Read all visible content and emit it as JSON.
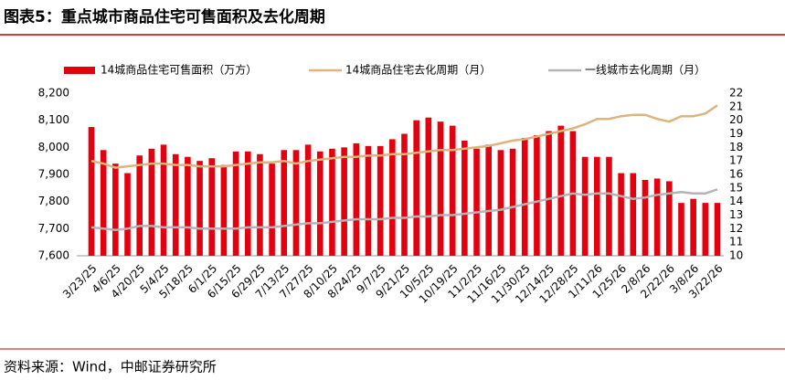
{
  "chart_data": {
    "type": "bar",
    "title": "图表5：重点城市商品住宅可售面积及去化周期",
    "source": "资料来源：Wind，中邮证券研究所",
    "categories": [
      "3/23/25",
      null,
      "4/6/25",
      null,
      "4/20/25",
      null,
      "5/4/25",
      null,
      "5/18/25",
      null,
      "6/1/25",
      null,
      "6/15/25",
      null,
      "6/29/25",
      null,
      "7/13/25",
      null,
      "7/27/25",
      null,
      "8/10/25",
      null,
      "8/24/25",
      null,
      "9/7/25",
      null,
      "9/21/25",
      null,
      "10/5/25",
      null,
      "10/19/25",
      null,
      "11/2/25",
      null,
      "11/16/25",
      null,
      "11/30/25",
      null,
      "12/14/25",
      null,
      "12/28/25",
      null,
      "1/11/26",
      null,
      "1/25/26",
      null,
      "2/8/26",
      null,
      "2/22/26",
      null,
      "3/8/26",
      null,
      "3/22/26"
    ],
    "series": [
      {
        "name": "14城商品住宅可售面积（万方）",
        "type": "bar",
        "color": "#e3000f",
        "values": [
          8075,
          7990,
          7940,
          7905,
          7970,
          7995,
          8010,
          7975,
          7965,
          7950,
          7960,
          7935,
          7985,
          7985,
          7975,
          7940,
          7990,
          7990,
          8010,
          7985,
          7995,
          8000,
          8015,
          8005,
          8005,
          8030,
          8050,
          8100,
          8110,
          8095,
          8080,
          8025,
          7995,
          8010,
          7990,
          7995,
          8035,
          8045,
          8060,
          8080,
          8060,
          7965,
          7965,
          7965,
          7905,
          7905,
          7880,
          7885,
          7875,
          7795,
          7810,
          7795,
          7795
        ]
      },
      {
        "name": "14城商品住宅去化周期（月）",
        "type": "line",
        "axis": "y2",
        "color": "#dcb47e",
        "values": [
          17.0,
          16.8,
          16.5,
          16.6,
          16.7,
          16.8,
          16.8,
          16.7,
          16.7,
          16.6,
          16.6,
          16.6,
          16.7,
          16.8,
          16.9,
          16.9,
          17.0,
          16.8,
          17.0,
          17.1,
          17.2,
          17.3,
          17.3,
          17.4,
          17.4,
          17.5,
          17.5,
          17.6,
          17.7,
          17.8,
          17.8,
          17.9,
          18.0,
          18.1,
          18.3,
          18.5,
          18.6,
          18.8,
          19.0,
          19.2,
          19.4,
          19.7,
          20.1,
          20.1,
          20.3,
          20.4,
          20.4,
          20.1,
          19.9,
          20.3,
          20.3,
          20.5,
          21.1
        ]
      },
      {
        "name": "一线城市去化周期（月）",
        "type": "line",
        "axis": "y2",
        "color": "#b4b4b4",
        "values": [
          12.1,
          12.0,
          11.9,
          12.0,
          12.2,
          12.2,
          12.1,
          12.1,
          12.1,
          12.0,
          12.0,
          12.0,
          12.0,
          12.1,
          12.1,
          12.1,
          12.2,
          12.3,
          12.4,
          12.4,
          12.5,
          12.6,
          12.7,
          12.7,
          12.7,
          12.8,
          12.8,
          12.9,
          12.9,
          13.0,
          13.0,
          13.1,
          13.2,
          13.3,
          13.4,
          13.6,
          13.8,
          14.0,
          14.2,
          14.4,
          14.6,
          14.5,
          14.6,
          14.6,
          14.4,
          14.2,
          14.3,
          14.5,
          14.6,
          14.7,
          14.6,
          14.6,
          14.9
        ]
      }
    ],
    "ylim": [
      7600,
      8200
    ],
    "yticks": [
      {
        "value": 7600,
        "label": "7,600"
      },
      {
        "value": 7700,
        "label": "7,700"
      },
      {
        "value": 7800,
        "label": "7,800"
      },
      {
        "value": 7900,
        "label": "7,900"
      },
      {
        "value": 8000,
        "label": "8,000"
      },
      {
        "value": 8100,
        "label": "8,100"
      },
      {
        "value": 8200,
        "label": "8,200"
      }
    ],
    "y2lim": [
      10,
      22
    ],
    "y2ticks": [
      10,
      11,
      12,
      13,
      14,
      15,
      16,
      17,
      18,
      19,
      20,
      21,
      22
    ],
    "grid": false,
    "legend": "top"
  }
}
